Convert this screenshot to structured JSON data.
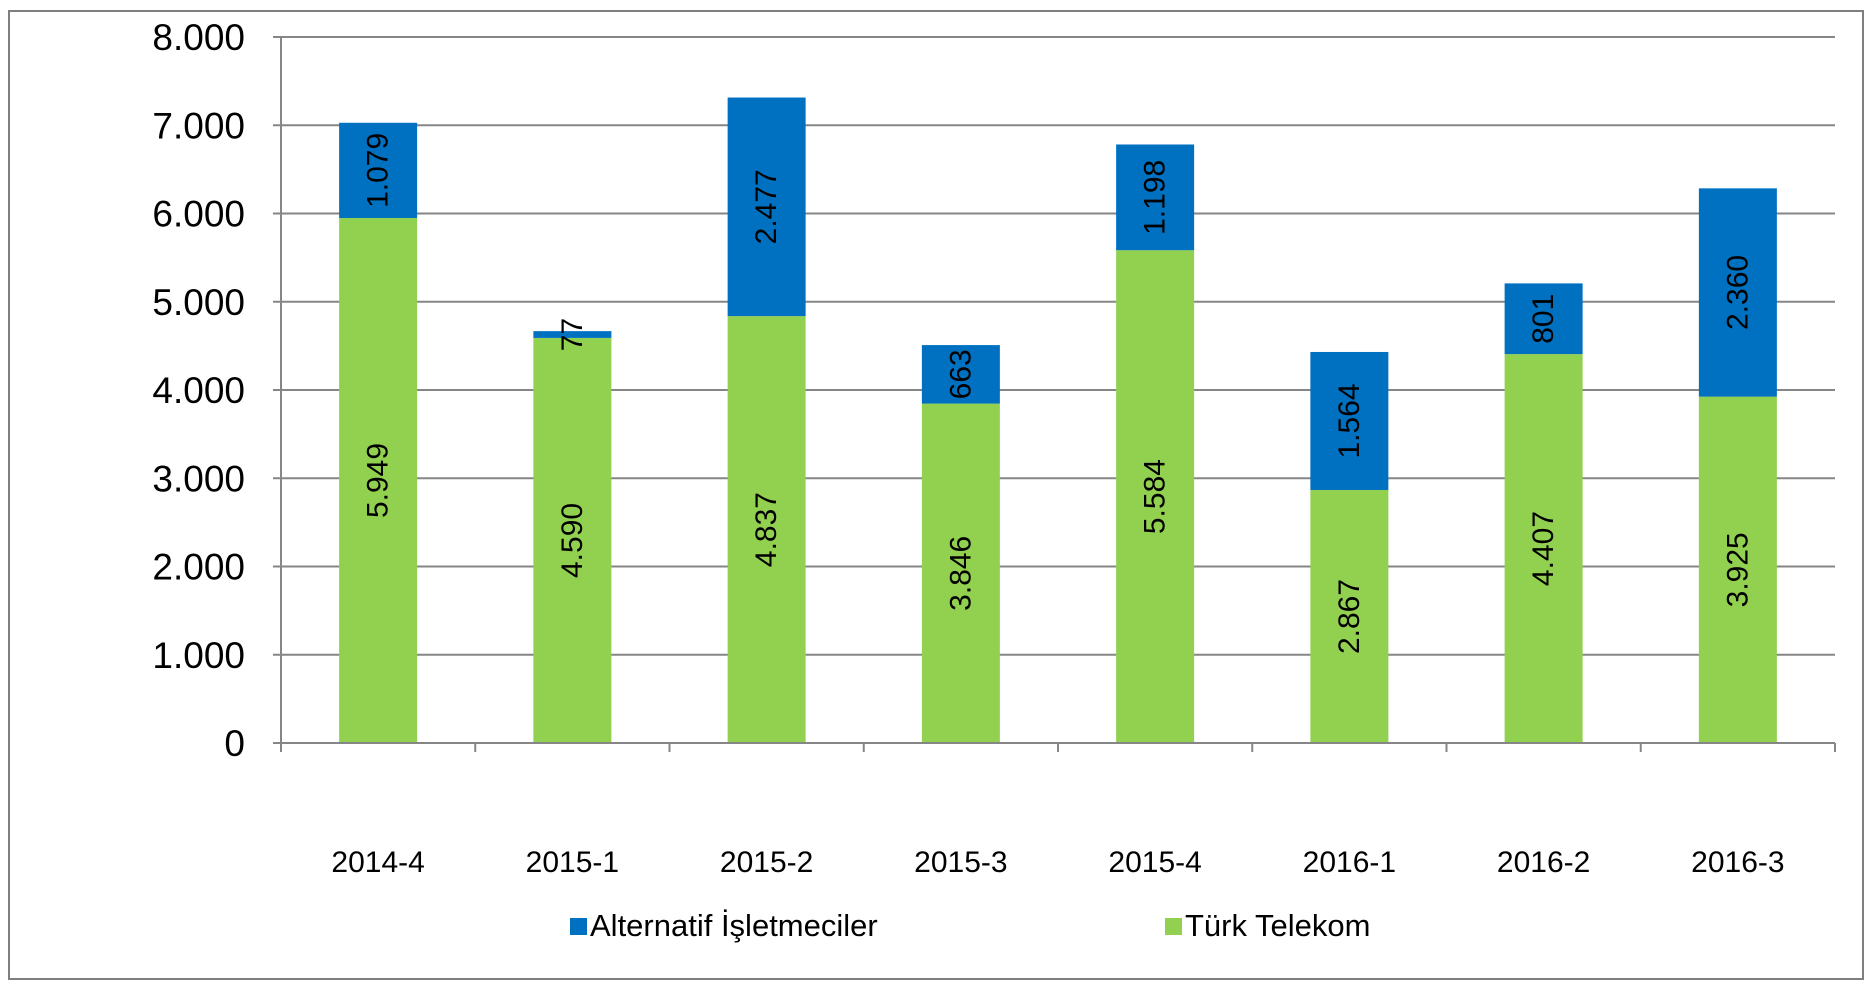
{
  "chart_data": {
    "type": "bar",
    "stacked": true,
    "categories": [
      "2014-4",
      "2015-1",
      "2015-2",
      "2015-3",
      "2015-4",
      "2016-1",
      "2016-2",
      "2016-3"
    ],
    "series": [
      {
        "name": "Türk Telekom",
        "color": "#92d050",
        "values": [
          5949,
          4590,
          4837,
          3846,
          5584,
          2867,
          4407,
          3925
        ],
        "labels": [
          "5.949",
          "4.590",
          "4.837",
          "3.846",
          "5.584",
          "2.867",
          "4.407",
          "3.925"
        ]
      },
      {
        "name": "Alternatif İşletmeciler",
        "color": "#0070c0",
        "values": [
          1079,
          77,
          2477,
          663,
          1198,
          1564,
          801,
          2360
        ],
        "labels": [
          "1.079",
          "77",
          "2.477",
          "663",
          "1.198",
          "1.564",
          "801",
          "2.360"
        ]
      }
    ],
    "ylim": [
      0,
      8000
    ],
    "y_ticks": [
      0,
      1000,
      2000,
      3000,
      4000,
      5000,
      6000,
      7000,
      8000
    ],
    "y_tick_labels": [
      "0",
      "1.000",
      "2.000",
      "3.000",
      "4.000",
      "5.000",
      "6.000",
      "7.000",
      "8.000"
    ],
    "grid": true,
    "legend_position": "bottom",
    "legend_order": [
      "Alternatif İşletmeciler",
      "Türk Telekom"
    ],
    "title": "",
    "xlabel": "",
    "ylabel": ""
  }
}
